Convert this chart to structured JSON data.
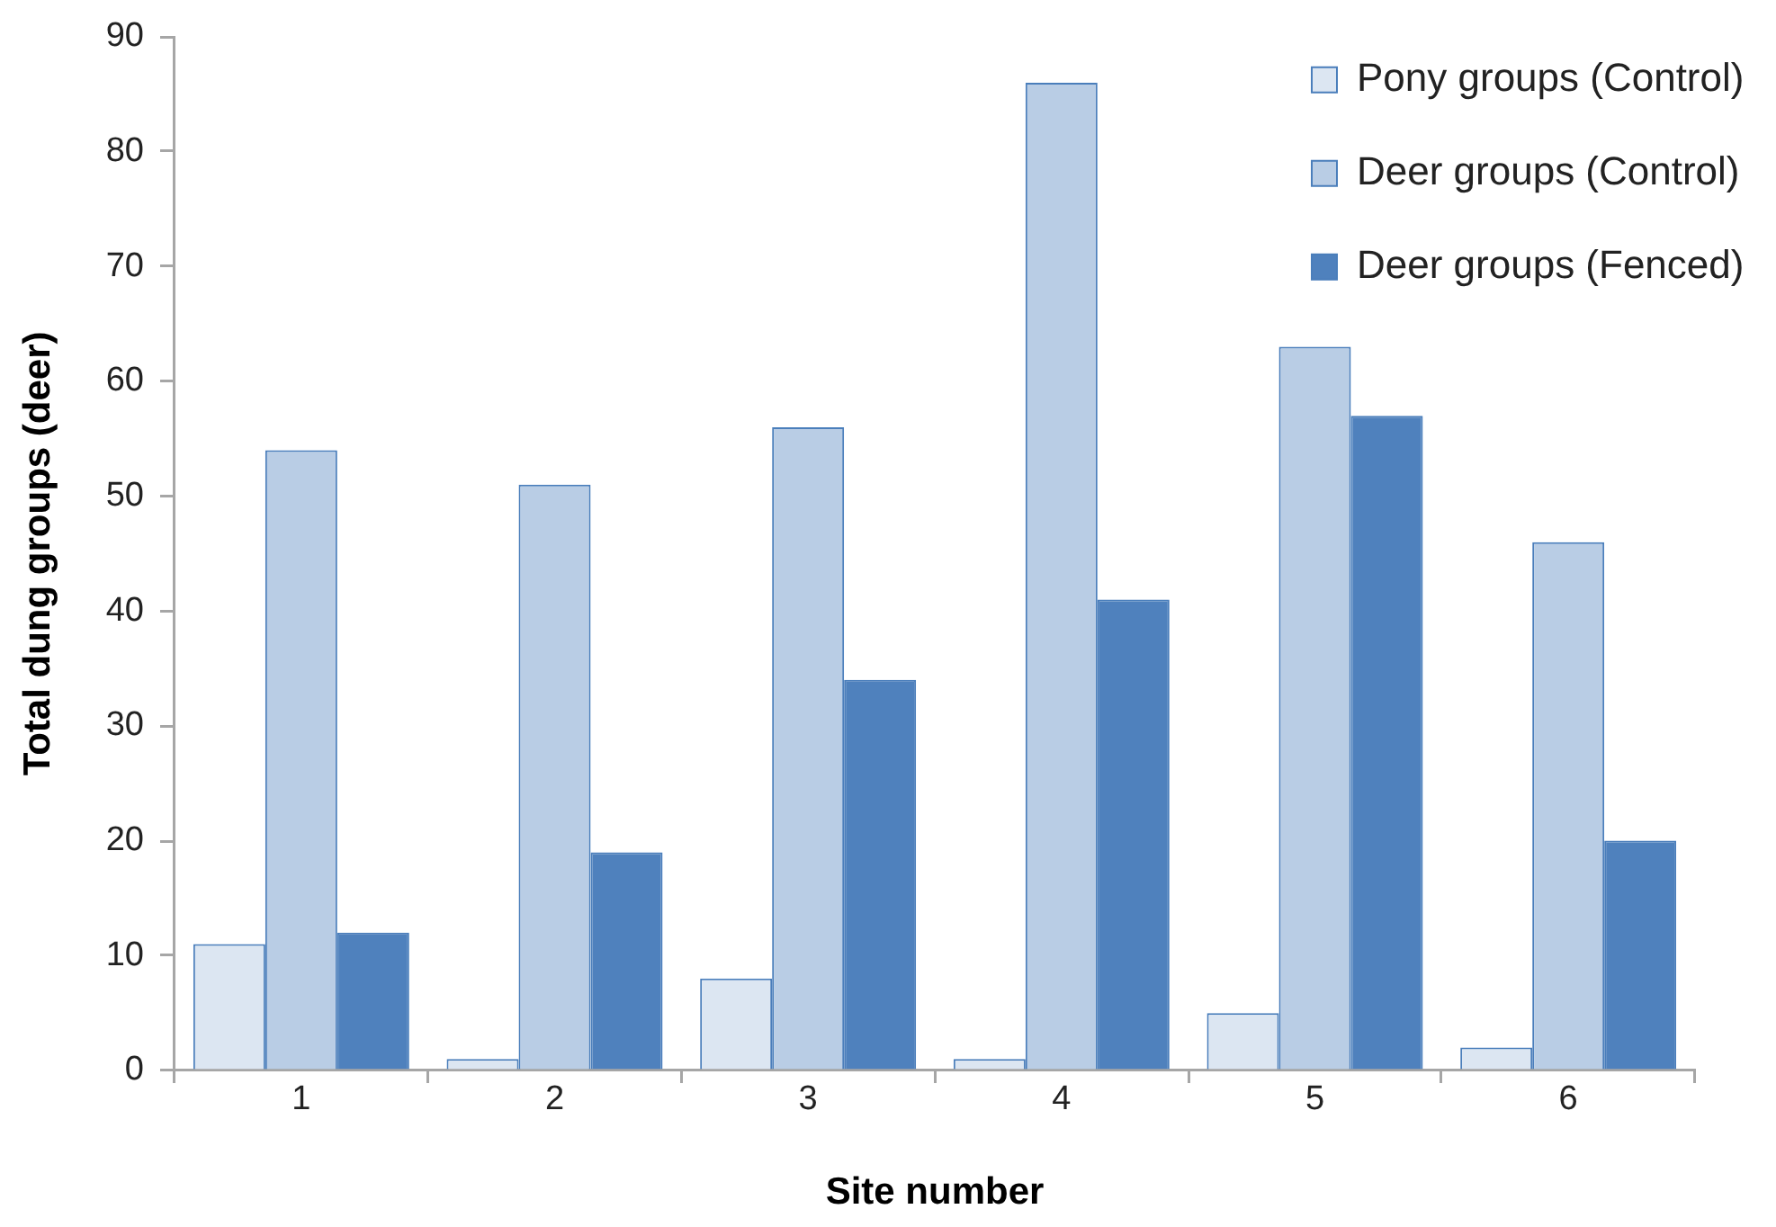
{
  "chart_data": {
    "type": "bar",
    "xlabel": "Site number",
    "ylabel": "Total dung groups (deer)",
    "categories": [
      "1",
      "2",
      "3",
      "4",
      "5",
      "6"
    ],
    "series": [
      {
        "name": "Pony groups (Control)",
        "color": "#dce6f2",
        "values": [
          11,
          1,
          8,
          1,
          5,
          2
        ]
      },
      {
        "name": "Deer groups (Control)",
        "color": "#b9cde5",
        "values": [
          54,
          51,
          56,
          86,
          63,
          46
        ]
      },
      {
        "name": "Deer groups (Fenced)",
        "color": "#4f81bd",
        "values": [
          12,
          19,
          34,
          41,
          57,
          20
        ]
      }
    ],
    "ylim": [
      0,
      90
    ],
    "yticks": [
      0,
      10,
      20,
      30,
      40,
      50,
      60,
      70,
      80,
      90
    ],
    "legend": "top right"
  }
}
